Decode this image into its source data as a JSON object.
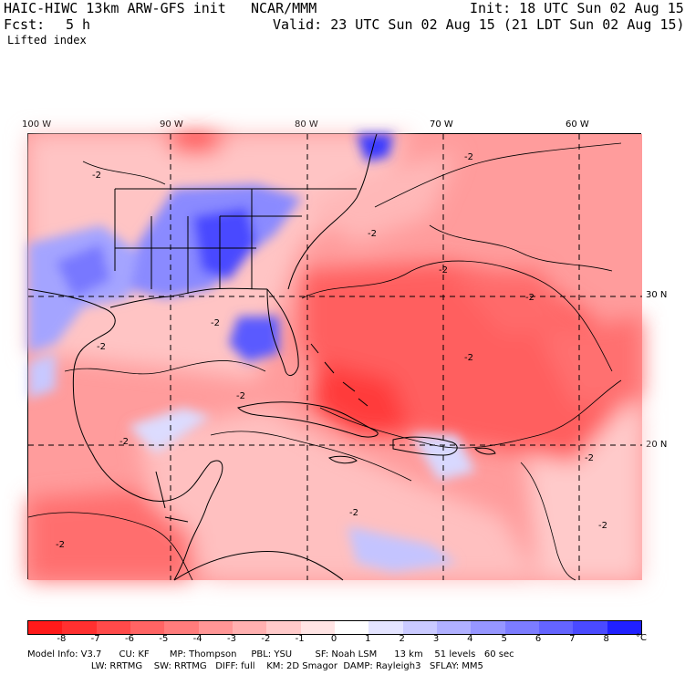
{
  "header": {
    "model_name": "HAIC-HIWC 13km ARW-GFS init",
    "org": "NCAR/MMM",
    "init": "Init: 18 UTC Sun 02 Aug 15",
    "fcst_label": "Fcst:",
    "fcst_value": "5 h",
    "valid": "Valid: 23 UTC Sun 02 Aug 15 (21 LDT Sun 02 Aug 15)",
    "field": "Lifted index"
  },
  "map": {
    "lon_labels": [
      "100 W",
      "90 W",
      "80 W",
      "70 W",
      "60 W"
    ],
    "lat_labels": [
      "30 N",
      "20 N"
    ],
    "contour_labels": [
      "-2",
      "-2",
      "-2",
      "-2",
      "-2",
      "-2",
      "-2",
      "-2",
      "-2",
      "-2",
      "-2",
      "-2",
      "-2",
      "-2"
    ]
  },
  "colorbar": {
    "colors": [
      "#ff1a1a",
      "#ff3030",
      "#ff4a4a",
      "#ff6464",
      "#ff7c7c",
      "#ff9696",
      "#ffb0b0",
      "#ffcaca",
      "#ffe4e4",
      "#ffffff",
      "#e4e4ff",
      "#cacaff",
      "#b0b0ff",
      "#9696ff",
      "#7c7cff",
      "#6464ff",
      "#4a4aff",
      "#2020ff"
    ],
    "labels": [
      "-8",
      "-7",
      "-6",
      "-5",
      "-4",
      "-3",
      "-2",
      "-1",
      "0",
      "1",
      "2",
      "3",
      "4",
      "5",
      "6",
      "7",
      "8"
    ],
    "unit": "°C"
  },
  "model_info": {
    "line1": "Model Info: V3.7      CU: KF       MP: Thompson     PBL: YSU        SF: Noah LSM      13 km    51 levels   60 sec",
    "line2": "                      LW: RRTMG    SW: RRTMG   DIFF: full    KM: 2D Smagor  DAMP: Rayleigh3   SFLAY: MM5"
  }
}
